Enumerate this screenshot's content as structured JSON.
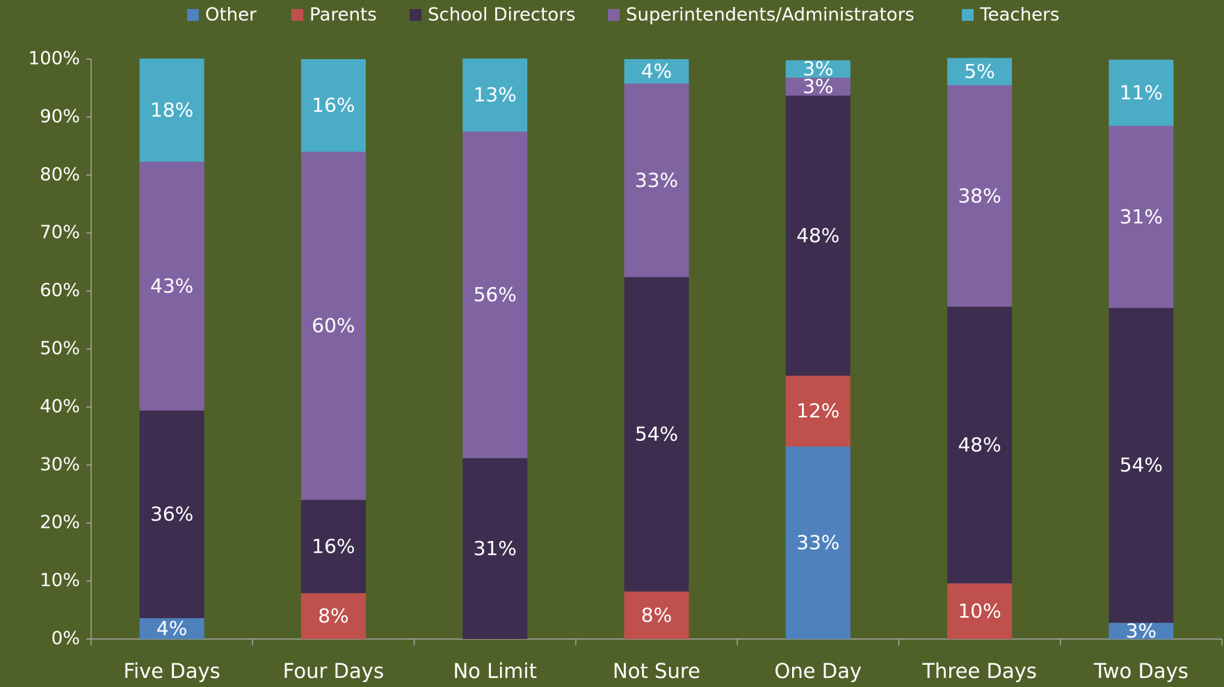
{
  "chart_data": {
    "type": "stacked_bar",
    "categories": [
      "Five Days",
      "Four Days",
      "No Limit",
      "Not Sure",
      "One Day",
      "Three Days",
      "Two Days"
    ],
    "series": [
      {
        "name": "Other",
        "color": "#4f81bd",
        "values": [
          3.6,
          null,
          null,
          null,
          33.2,
          null,
          2.8
        ],
        "value_labels": [
          "4%",
          null,
          null,
          null,
          "33%",
          null,
          "3%"
        ]
      },
      {
        "name": "Parents",
        "color": "#c0504d",
        "values": [
          null,
          7.9,
          null,
          8.2,
          12.2,
          9.6,
          null
        ],
        "value_labels": [
          null,
          "8%",
          null,
          "8%",
          "12%",
          "10%",
          null
        ]
      },
      {
        "name": "School Directors",
        "color": "#3d2e4f",
        "values": [
          35.8,
          16.1,
          31.2,
          54.2,
          48.3,
          47.7,
          54.3
        ],
        "value_labels": [
          "36%",
          "16%",
          "31%",
          "54%",
          "48%",
          "48%",
          "54%"
        ]
      },
      {
        "name": "Superintendents/Administrators",
        "color": "#8064a2",
        "values": [
          42.9,
          60.0,
          56.3,
          33.4,
          3.1,
          38.2,
          31.4
        ],
        "value_labels": [
          "43%",
          "60%",
          "56%",
          "33%",
          "3%",
          "38%",
          "31%"
        ]
      },
      {
        "name": "Teachers",
        "color": "#4bacc6",
        "values": [
          17.8,
          16.0,
          12.6,
          4.2,
          3.0,
          4.7,
          11.4
        ],
        "value_labels": [
          "18%",
          "16%",
          "13%",
          "4%",
          "3%",
          "5%",
          "11%"
        ]
      }
    ],
    "ylim": [
      0,
      100
    ],
    "yticks": [
      {
        "value": 0,
        "label": "0%"
      },
      {
        "value": 10,
        "label": "10%"
      },
      {
        "value": 20,
        "label": "20%"
      },
      {
        "value": 30,
        "label": "30%"
      },
      {
        "value": 40,
        "label": "40%"
      },
      {
        "value": 50,
        "label": "50%"
      },
      {
        "value": 60,
        "label": "60%"
      },
      {
        "value": 70,
        "label": "70%"
      },
      {
        "value": 80,
        "label": "80%"
      },
      {
        "value": 90,
        "label": "90%"
      },
      {
        "value": 100,
        "label": "100%"
      }
    ],
    "legend": "top"
  }
}
